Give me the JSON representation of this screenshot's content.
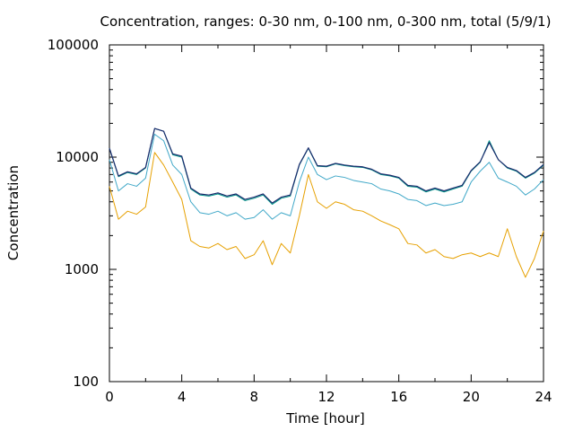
{
  "chart_data": {
    "type": "line",
    "title": "Concentration, ranges: 0-30 nm, 0-100 nm, 0-300 nm, total (5/9/1)",
    "xlabel": "Time [hour]",
    "ylabel": "Concentration",
    "xlim": [
      0,
      24
    ],
    "ylim": [
      100,
      100000
    ],
    "yscale": "log",
    "xticks": [
      "0",
      "4",
      "8",
      "12",
      "16",
      "20",
      "24"
    ],
    "yticks": [
      "100",
      "1000",
      "10000",
      "100000"
    ],
    "grid": false,
    "legend": "none",
    "x": [
      0,
      0.5,
      1,
      1.5,
      2,
      2.5,
      3,
      3.5,
      4,
      4.5,
      5,
      5.5,
      6,
      6.5,
      7,
      7.5,
      8,
      8.5,
      9,
      9.5,
      10,
      10.5,
      11,
      11.5,
      12,
      12.5,
      13,
      13.5,
      14,
      14.5,
      15,
      15.5,
      16,
      16.5,
      17,
      17.5,
      18,
      18.5,
      19,
      19.5,
      20,
      20.5,
      21,
      21.5,
      22,
      22.5,
      23,
      23.5,
      24
    ],
    "series": [
      {
        "color": "#e6a000",
        "values": [
          5500,
          2800,
          3300,
          3100,
          3600,
          11000,
          8500,
          6000,
          4200,
          1800,
          1600,
          1550,
          1700,
          1500,
          1600,
          1250,
          1350,
          1800,
          1100,
          1700,
          1400,
          3000,
          7000,
          4000,
          3500,
          4000,
          3800,
          3400,
          3300,
          3000,
          2700,
          2500,
          2300,
          1700,
          1650,
          1400,
          1500,
          1300,
          1250,
          1350,
          1400,
          1300,
          1400,
          1300,
          2300,
          1300,
          850,
          1250,
          2200
        ]
      },
      {
        "color": "#40a8c8",
        "values": [
          9500,
          5000,
          5800,
          5500,
          6500,
          16000,
          14000,
          8500,
          7000,
          4000,
          3200,
          3100,
          3300,
          3000,
          3200,
          2800,
          2900,
          3400,
          2800,
          3200,
          3000,
          6000,
          10000,
          7000,
          6300,
          6800,
          6600,
          6200,
          6000,
          5800,
          5200,
          5000,
          4700,
          4200,
          4100,
          3700,
          3900,
          3700,
          3800,
          4000,
          6000,
          7500,
          9000,
          6500,
          6000,
          5500,
          4600,
          5200,
          6300
        ]
      },
      {
        "color": "#009688",
        "values": [
          12000,
          6700,
          7300,
          7000,
          8000,
          18000,
          17000,
          10500,
          10000,
          5200,
          4600,
          4500,
          4700,
          4400,
          4600,
          4100,
          4300,
          4600,
          3800,
          4300,
          4500,
          8500,
          12000,
          8300,
          8200,
          8700,
          8400,
          8200,
          8100,
          7700,
          7000,
          6800,
          6500,
          5500,
          5400,
          4900,
          5200,
          4900,
          5200,
          5500,
          7500,
          9000,
          14000,
          9500,
          8000,
          7500,
          6500,
          7200,
          8500
        ]
      },
      {
        "color": "#1a2a6c",
        "values": [
          12000,
          6800,
          7400,
          7100,
          8100,
          18000,
          17000,
          10700,
          10200,
          5300,
          4700,
          4600,
          4800,
          4500,
          4700,
          4200,
          4400,
          4700,
          3900,
          4400,
          4600,
          8600,
          12100,
          8400,
          8300,
          8800,
          8500,
          8300,
          8200,
          7800,
          7100,
          6900,
          6600,
          5600,
          5500,
          5000,
          5300,
          5000,
          5300,
          5600,
          7600,
          9100,
          13500,
          9500,
          8100,
          7600,
          6600,
          7300,
          8600
        ]
      }
    ]
  }
}
